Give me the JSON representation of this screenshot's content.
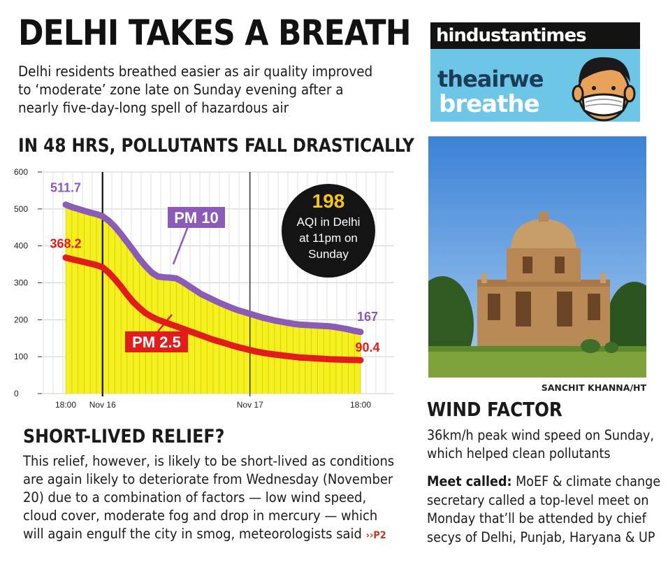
{
  "headline": "DELHI TAKES A BREATH",
  "deck": [
    "Delhi residents breathed easier as air quality improved",
    "to ‘moderate’ zone late on Sunday evening after a",
    "nearly five-day-long spell of hazardous air"
  ],
  "chart_title": "IN 48 HRS, POLLUTANTS FALL DRASTICALLY",
  "chart_data": {
    "type": "line",
    "title": "IN 48 HRS, POLLUTANTS FALL DRASTICALLY",
    "xlabel": "",
    "ylabel": "",
    "ylim": [
      0,
      600
    ],
    "y_ticks": [
      "600",
      "500",
      "400",
      "300",
      "200",
      "100",
      "0"
    ],
    "x_tick_labels": [
      "18:00",
      "Nov 16",
      "Nov 17",
      "18:00"
    ],
    "x": [
      0,
      1,
      2,
      3,
      4,
      5,
      6,
      7,
      8,
      9,
      10,
      11,
      12,
      13,
      14,
      15,
      16,
      17,
      18,
      19,
      20,
      21,
      22,
      23,
      24,
      25,
      26,
      27,
      28,
      29,
      30,
      31,
      32,
      33,
      34,
      35,
      36,
      37,
      38,
      39,
      40,
      41,
      42,
      43,
      44,
      45,
      46,
      47,
      48
    ],
    "series": [
      {
        "name": "PM 10",
        "color": "#8a5cb8",
        "start_label": "511.7",
        "end_label": "167",
        "values": [
          511.7,
          505,
          500,
          495,
          490,
          486,
          480,
          468,
          452,
          432,
          410,
          388,
          365,
          345,
          328,
          317,
          315,
          314,
          312,
          303,
          292,
          281,
          270,
          262,
          254,
          246,
          239,
          232,
          226,
          221,
          216,
          211,
          206,
          202,
          198,
          195,
          192,
          189,
          187,
          186,
          185,
          184,
          183,
          182,
          180,
          177,
          174,
          170,
          167
        ]
      },
      {
        "name": "PM 2.5",
        "color": "#e21b1b",
        "start_label": "368.2",
        "end_label": "90.4",
        "values": [
          368.2,
          364,
          360,
          356,
          352,
          348,
          342,
          328,
          310,
          290,
          268,
          248,
          232,
          218,
          208,
          200,
          194,
          188,
          182,
          176,
          170,
          164,
          158,
          152,
          146,
          141,
          136,
          131,
          126,
          122,
          118,
          114,
          111,
          108,
          106,
          104,
          102,
          100,
          98,
          97,
          96,
          95,
          94,
          93,
          92.5,
          92,
          91.5,
          91,
          90.4
        ]
      }
    ],
    "fill_color": "#f5f01e",
    "annotation": {
      "value": "198",
      "line1": "AQI in Delhi",
      "line2": "at 11pm on",
      "line3": "Sunday"
    },
    "grid": true
  },
  "relief": {
    "title": "SHORT-LIVED RELIEF?",
    "body": [
      "This relief, however, is likely to be short-lived as conditions",
      "are again likely to deteriorate from Wednesday (November",
      "20) due to a combination of factors — low wind speed,",
      "cloud cover, moderate fog and drop in mercury — which",
      "will again engulf the city in smog, meteorologists said"
    ],
    "jump": "››P2"
  },
  "brand": {
    "top_text": "hindustantimes",
    "line1": "theairwe",
    "line2": "breathe"
  },
  "photo_credit": "SANCHIT KHANNA/HT",
  "wind": {
    "title": "WIND FACTOR",
    "body": [
      "36km/h peak wind speed on Sunday,",
      "which helped clean pollutants"
    ]
  },
  "meet": {
    "label": "Meet called:",
    "first_line": " MoEF & climate change",
    "lines": [
      "secretary called a top-level meet on",
      "Monday that’ll be attended by chief",
      "secys of Delhi, Punjab, Haryana & UP"
    ]
  }
}
